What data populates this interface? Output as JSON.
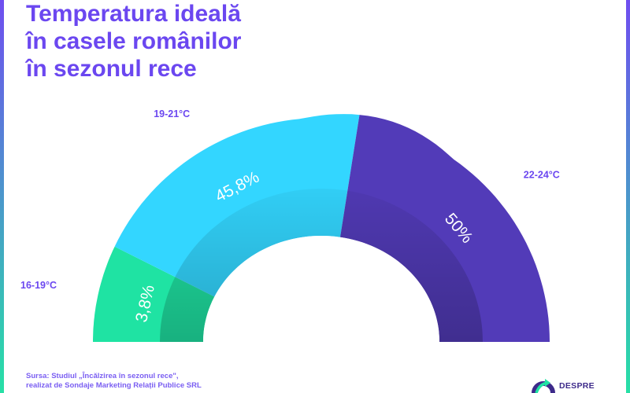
{
  "title": {
    "lines": [
      "Temperatura ideală",
      "în casele românilor",
      "în sezonul rece"
    ]
  },
  "chart_data": {
    "type": "pie",
    "variant": "half-donut",
    "categories": [
      "16-19°C",
      "19-21°C",
      "22-24°C"
    ],
    "values": [
      3.8,
      45.8,
      50
    ],
    "value_labels": [
      "3,8%",
      "45,8%",
      "50%"
    ],
    "unit": "%",
    "colors": [
      "#1fe3a3",
      "#33d6ff",
      "#523bb8"
    ],
    "legend": "none"
  },
  "footer": {
    "source_line1": "Sursa: Studiul „Încălzirea în sezonul rece\",",
    "source_line2": "realizat de Sondaje Marketing Relații Publice SRL"
  },
  "logo": {
    "text": "DESPRE",
    "icon": "logo-arrow-icon",
    "colors": [
      "#3d2a8a",
      "#1fe3a3"
    ]
  },
  "frame": {
    "gradient_colors": [
      "#6f4ef0",
      "#27e0a6"
    ]
  }
}
